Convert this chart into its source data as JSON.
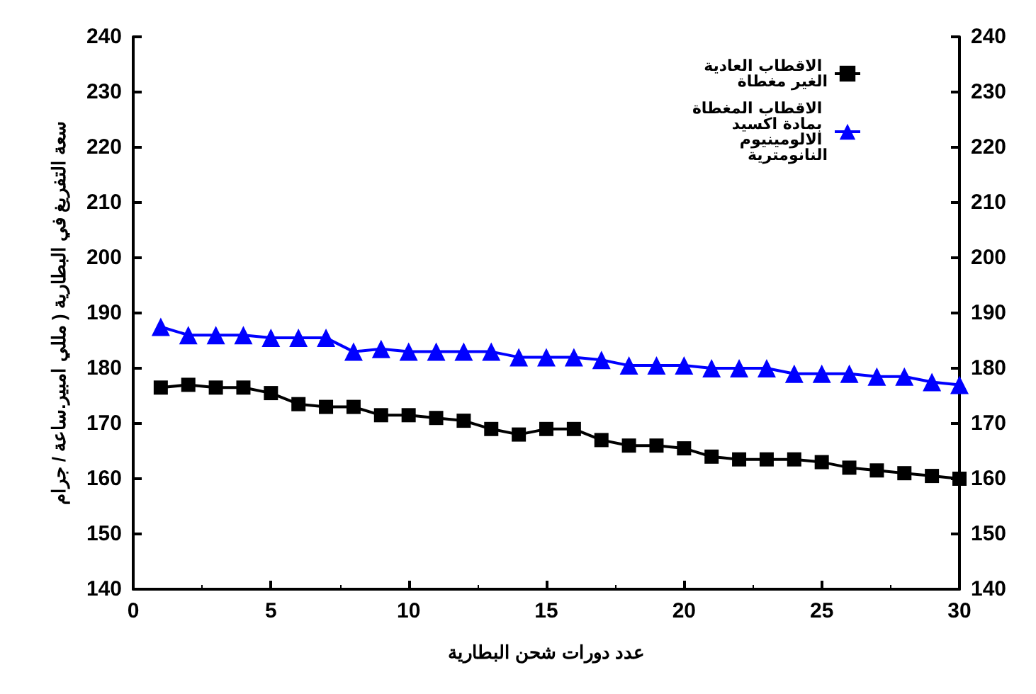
{
  "chart_data": {
    "type": "line",
    "xlabel": "عدد دورات شحن البطارية",
    "ylabel": "سعة التفريغ في البطارية ( مللي امبير.ساعة / جرام",
    "x": [
      1,
      2,
      3,
      4,
      5,
      6,
      7,
      8,
      9,
      10,
      11,
      12,
      13,
      14,
      15,
      16,
      17,
      18,
      19,
      20,
      21,
      22,
      23,
      24,
      25,
      26,
      27,
      28,
      29,
      30
    ],
    "series": [
      {
        "name": "الاقطاب العادية الغير مغطاة",
        "color": "#000000",
        "marker": "square",
        "values": [
          176.5,
          177,
          176.5,
          176.5,
          175.5,
          173.5,
          173,
          173,
          171.5,
          171.5,
          171,
          170.5,
          169,
          168,
          169,
          169,
          167,
          166,
          166,
          165.5,
          164,
          163.5,
          163.5,
          163.5,
          163,
          162,
          161.5,
          161,
          160.5,
          160
        ]
      },
      {
        "name": "الاقطاب المغطاة بمادة اكسيد الالومينيوم النانومترية",
        "color": "#0000ff",
        "marker": "triangle",
        "values": [
          187.5,
          186,
          186,
          186,
          185.5,
          185.5,
          185.5,
          183,
          183.5,
          183,
          183,
          183,
          183,
          182,
          182,
          182,
          181.5,
          180.5,
          180.5,
          180.5,
          180,
          180,
          180,
          179,
          179,
          179,
          178.5,
          178.5,
          177.5,
          177
        ]
      }
    ],
    "xlim": [
      0,
      30
    ],
    "xticks": [
      0,
      5,
      10,
      15,
      20,
      25,
      30
    ],
    "ylim": [
      140,
      240
    ],
    "yticks": [
      140,
      150,
      160,
      170,
      180,
      190,
      200,
      210,
      220,
      230,
      240
    ],
    "y2lim": [
      140,
      240
    ],
    "y2ticks": [
      140,
      150,
      160,
      170,
      180,
      190,
      200,
      210,
      220,
      230,
      240
    ],
    "grid": false,
    "legend": "top right",
    "line_style": "solid"
  }
}
